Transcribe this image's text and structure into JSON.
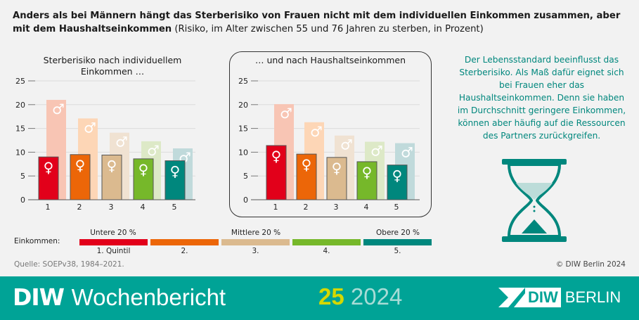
{
  "headline": {
    "bold": "Anders als bei Männern hängt das Sterberisiko von Frauen nicht mit dem individuellen Einkommen zusammen, aber mit dem Haushaltseinkommen",
    "normal": " (Risiko, im Alter zwischen 55 und 76 Jahren zu sterben, in Prozent)"
  },
  "chart_data": [
    {
      "type": "bar",
      "title": "Sterberisiko nach individuellem Einkommen …",
      "categories": [
        "1",
        "2",
        "3",
        "4",
        "5"
      ],
      "ylim": [
        0,
        25
      ],
      "yticks": [
        0,
        5,
        10,
        15,
        20,
        25
      ],
      "grid": true,
      "series": [
        {
          "symbol": "♂",
          "values": [
            21.0,
            17.1,
            14.1,
            12.3,
            10.8
          ],
          "colors": [
            "#f8c5b4",
            "#fdd6b6",
            "#f0e2d2",
            "#dde9c7",
            "#c0dadb"
          ]
        },
        {
          "symbol": "♀",
          "values": [
            9.0,
            9.5,
            9.4,
            8.6,
            8.2
          ],
          "colors": [
            "#e2001a",
            "#ec6608",
            "#dbba8f",
            "#76b82a",
            "#00877d"
          ]
        }
      ]
    },
    {
      "type": "bar",
      "title": "… und nach Haushaltseinkommen",
      "categories": [
        "1",
        "2",
        "3",
        "4",
        "5"
      ],
      "ylim": [
        0,
        25
      ],
      "yticks": [
        0,
        5,
        10,
        15,
        20,
        25
      ],
      "grid": true,
      "series": [
        {
          "symbol": "♂",
          "values": [
            20.1,
            16.3,
            13.5,
            12.2,
            11.9
          ],
          "colors": [
            "#f8c5b4",
            "#fdd6b6",
            "#f0e2d2",
            "#dde9c7",
            "#c0dadb"
          ]
        },
        {
          "symbol": "♀",
          "values": [
            11.4,
            9.6,
            8.9,
            8.0,
            7.3
          ],
          "colors": [
            "#e2001a",
            "#ec6608",
            "#dbba8f",
            "#76b82a",
            "#00877d"
          ]
        }
      ]
    }
  ],
  "side_text": "Der Lebensstandard beeinflusst das Sterberisiko. Als Maß dafür eignet sich bei Frauen eher das Haushaltseinkommen. Denn sie haben im Durchschnitt geringere Einkommen, können aber häufig auf die Ressourcen des Partners zurückgreifen.",
  "legend": {
    "label": "Einkommen:",
    "top_labels": [
      "Untere 20 %",
      "Mittlere 20 %",
      "Obere 20 %"
    ],
    "items": [
      {
        "label": "1. Quintil",
        "color": "#e2001a"
      },
      {
        "label": "2.",
        "color": "#ec6608"
      },
      {
        "label": "3.",
        "color": "#dbba8f"
      },
      {
        "label": "4.",
        "color": "#76b82a"
      },
      {
        "label": "5.",
        "color": "#00877d"
      }
    ]
  },
  "source": "Quelle: SOEPv38, 1984–2021.",
  "copyright": "© DIW Berlin 2024",
  "footer": {
    "brand_bold": "DIW",
    "brand_light": "Wochenbericht",
    "issue": "25",
    "year": "2024",
    "logo_text": "DIW",
    "logo_city": "BERLIN",
    "bg_color": "#00a396",
    "issue_color": "#d4d800"
  }
}
